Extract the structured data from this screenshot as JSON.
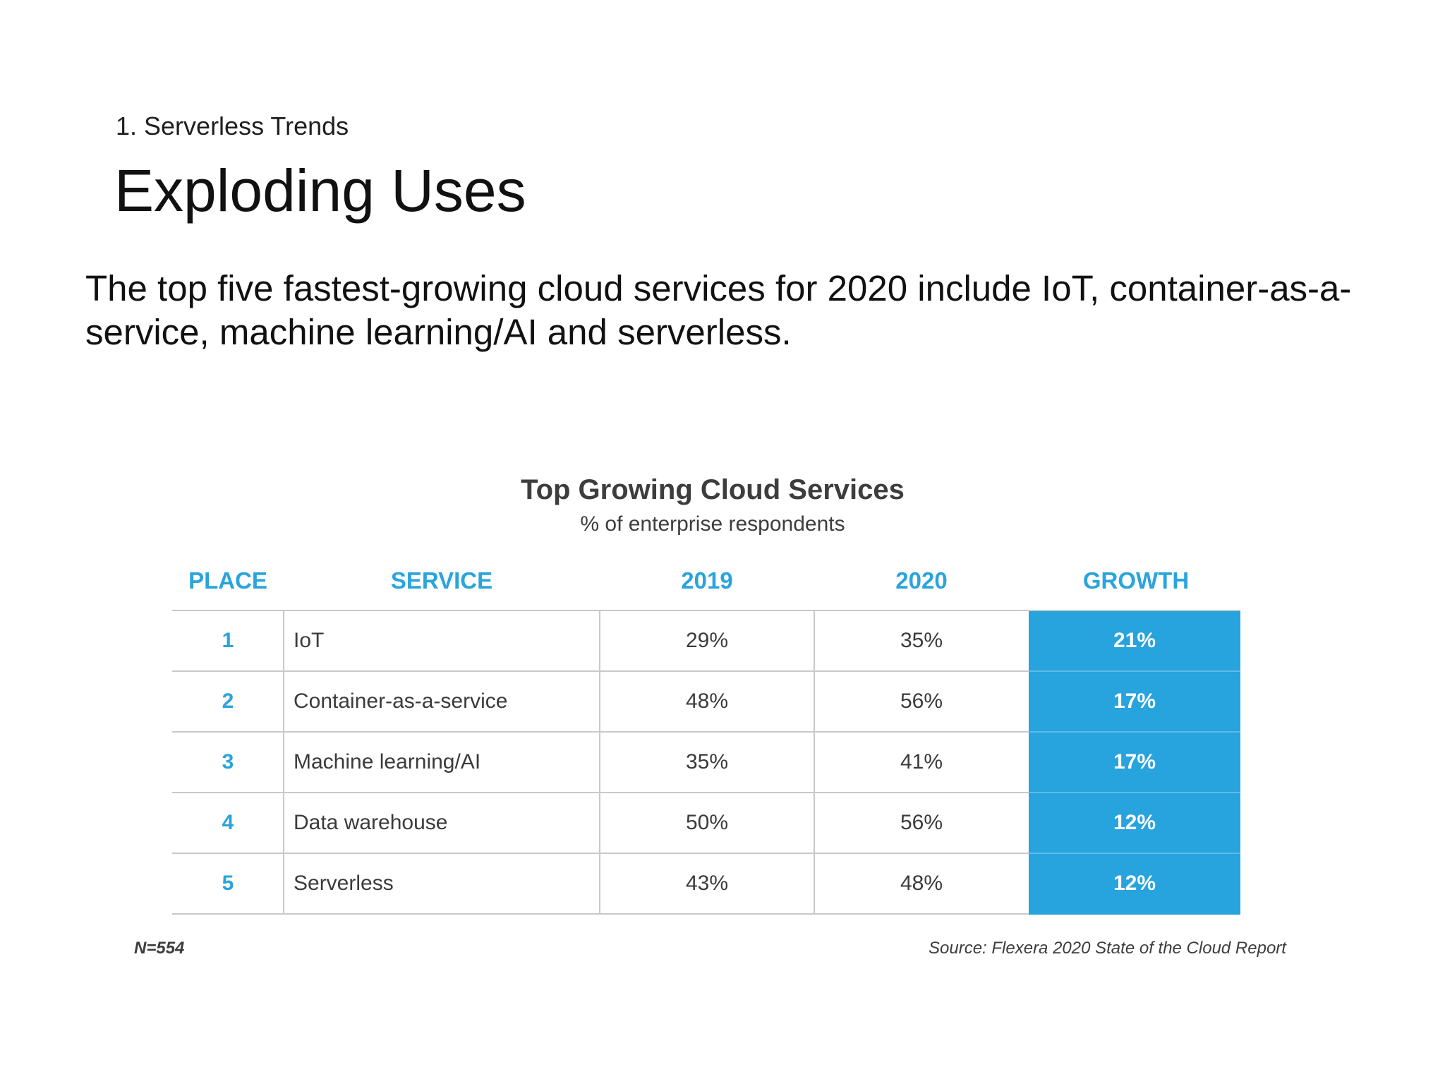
{
  "slide": {
    "section": "1. Serverless Trends",
    "title": "Exploding Uses",
    "body": "The top five fastest-growing cloud services for 2020 include IoT, container-as-a-service, machine learning/AI and serverless."
  },
  "chart_data": {
    "type": "table",
    "title": "Top Growing Cloud Services",
    "subtitle": "% of enterprise respondents",
    "columns": [
      "PLACE",
      "SERVICE",
      "2019",
      "2020",
      "GROWTH"
    ],
    "rows": [
      {
        "place": "1",
        "service": "IoT",
        "y2019": "29%",
        "y2020": "35%",
        "growth": "21%"
      },
      {
        "place": "2",
        "service": "Container-as-a-service",
        "y2019": "48%",
        "y2020": "56%",
        "growth": "17%"
      },
      {
        "place": "3",
        "service": "Machine learning/AI",
        "y2019": "35%",
        "y2020": "41%",
        "growth": "17%"
      },
      {
        "place": "4",
        "service": "Data warehouse",
        "y2019": "50%",
        "y2020": "56%",
        "growth": "12%"
      },
      {
        "place": "5",
        "service": "Serverless",
        "y2019": "43%",
        "y2020": "48%",
        "growth": "12%"
      }
    ],
    "note": "N=554",
    "source": "Source: Flexera 2020 State of the Cloud Report",
    "colors": {
      "header": "#2aa4dc",
      "growth_fill": "#27a3de",
      "grid": "#c9c9c9"
    }
  }
}
